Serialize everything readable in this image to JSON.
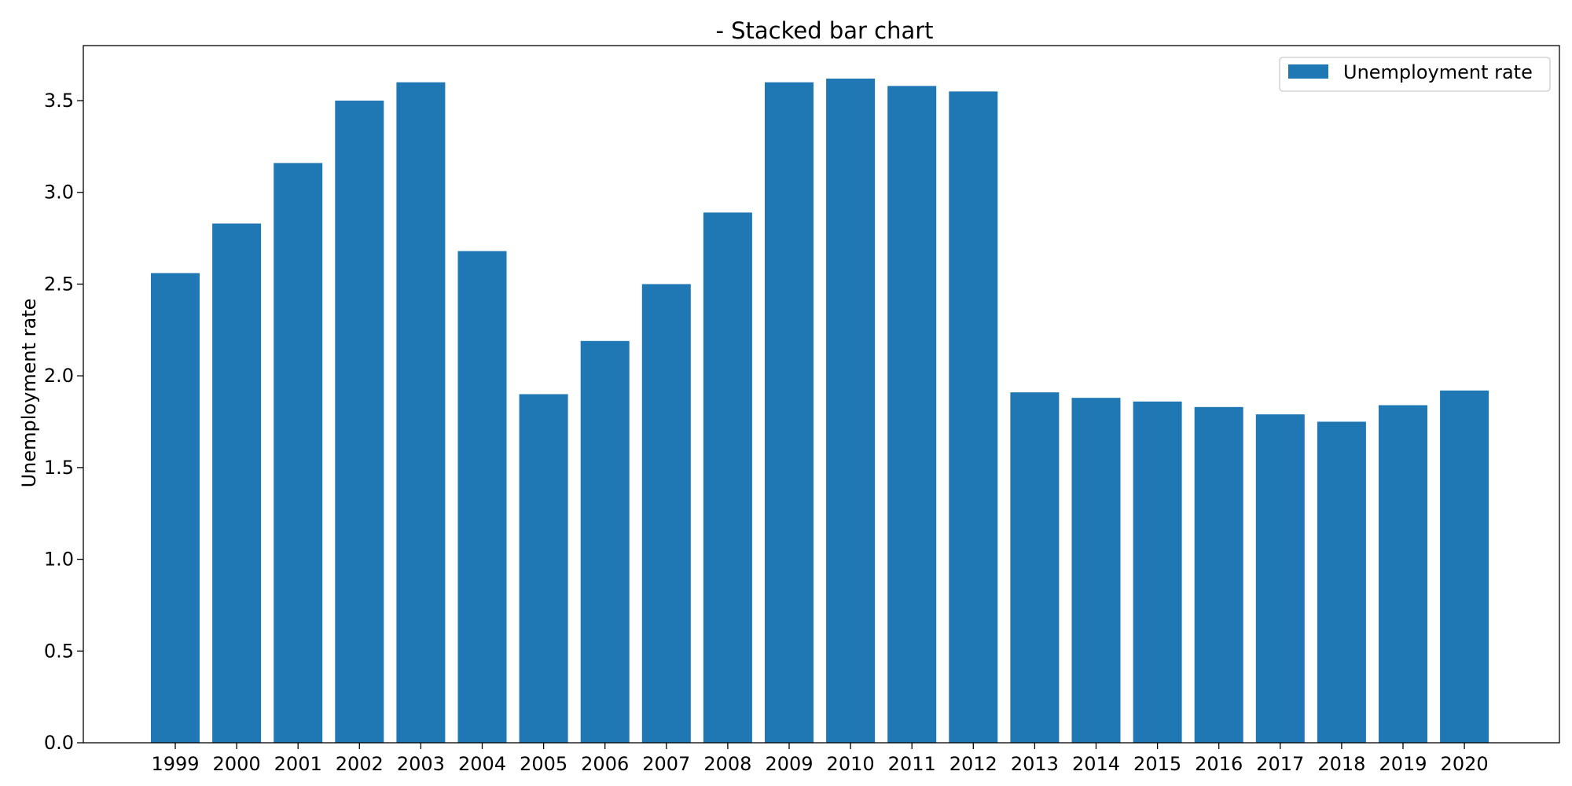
{
  "chart_data": {
    "type": "bar",
    "title": "- Stacked bar chart",
    "xlabel": "",
    "ylabel": "Unemployment rate",
    "categories": [
      "1999",
      "2000",
      "2001",
      "2002",
      "2003",
      "2004",
      "2005",
      "2006",
      "2007",
      "2008",
      "2009",
      "2010",
      "2011",
      "2012",
      "2013",
      "2014",
      "2015",
      "2016",
      "2017",
      "2018",
      "2019",
      "2020"
    ],
    "series": [
      {
        "name": "Unemployment rate",
        "color": "#1f77b4",
        "values": [
          2.56,
          2.83,
          3.16,
          3.5,
          3.6,
          2.68,
          1.9,
          2.19,
          2.5,
          2.89,
          3.6,
          3.62,
          3.58,
          3.55,
          1.91,
          1.88,
          1.86,
          1.83,
          1.79,
          1.75,
          1.84,
          1.92
        ]
      }
    ],
    "ylim": [
      0,
      3.8
    ],
    "yticks": [
      "0.0",
      "0.5",
      "1.0",
      "1.5",
      "2.0",
      "2.5",
      "3.0",
      "3.5"
    ],
    "grid": false,
    "legend_position": "top-right"
  }
}
